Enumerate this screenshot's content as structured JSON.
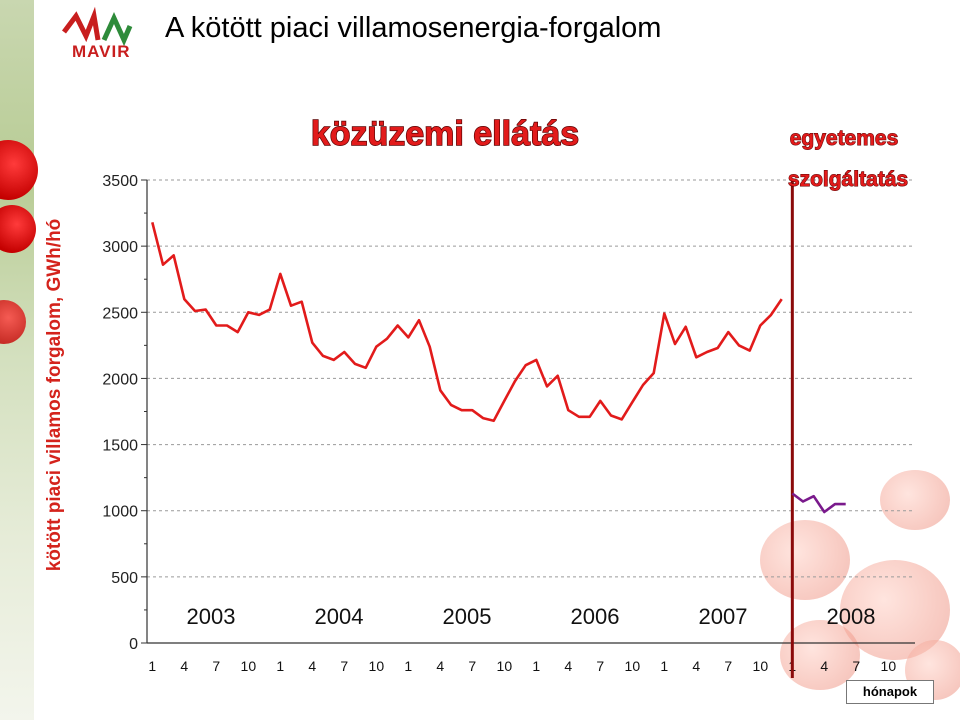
{
  "header": {
    "logo_text": "MAVIR",
    "title": "A kötött piaci villamosenergia-forgalom"
  },
  "colors": {
    "series_public": "#e21b1b",
    "series_universal": "#7a1a8c",
    "divider": "#8b0a0a",
    "brand": "#c81e1e"
  },
  "icons": [
    "mavir-logo-icon"
  ],
  "chart_data": {
    "type": "line",
    "ylabel": "kötött piaci villamos forgalom, GWh/hó",
    "xlabel": "hónapok",
    "ylim": [
      0,
      3500
    ],
    "yticks": [
      0,
      500,
      1000,
      1500,
      2000,
      2500,
      3000,
      3500
    ],
    "grid": true,
    "years": [
      "2003",
      "2004",
      "2005",
      "2006",
      "2007",
      "2008"
    ],
    "month_tick_labels": [
      "1",
      "4",
      "7",
      "10"
    ],
    "period_labels": [
      {
        "text": "közüzemi ellátás"
      },
      {
        "text": "egyetemes"
      },
      {
        "text": "szolgáltatás"
      }
    ],
    "series": [
      {
        "name": "közüzemi ellátás",
        "start_month": 1,
        "values": [
          3180,
          2860,
          2930,
          2600,
          2510,
          2520,
          2400,
          2400,
          2350,
          2500,
          2480,
          2520,
          2790,
          2550,
          2580,
          2270,
          2170,
          2140,
          2200,
          2110,
          2080,
          2240,
          2300,
          2400,
          2310,
          2440,
          2240,
          1910,
          1800,
          1760,
          1760,
          1700,
          1680,
          1830,
          1980,
          2100,
          2140,
          1940,
          2020,
          1760,
          1710,
          1710,
          1830,
          1720,
          1690,
          1820,
          1950,
          2040,
          2490,
          2260,
          2390,
          2160,
          2200,
          2230,
          2350,
          2250,
          2210,
          2400,
          2480,
          2600
        ]
      },
      {
        "name": "egyetemes szolgáltatás",
        "start_month": 61,
        "values": [
          1130,
          1070,
          1110,
          990,
          1050,
          1050
        ]
      }
    ],
    "divider_after_month": 60
  }
}
